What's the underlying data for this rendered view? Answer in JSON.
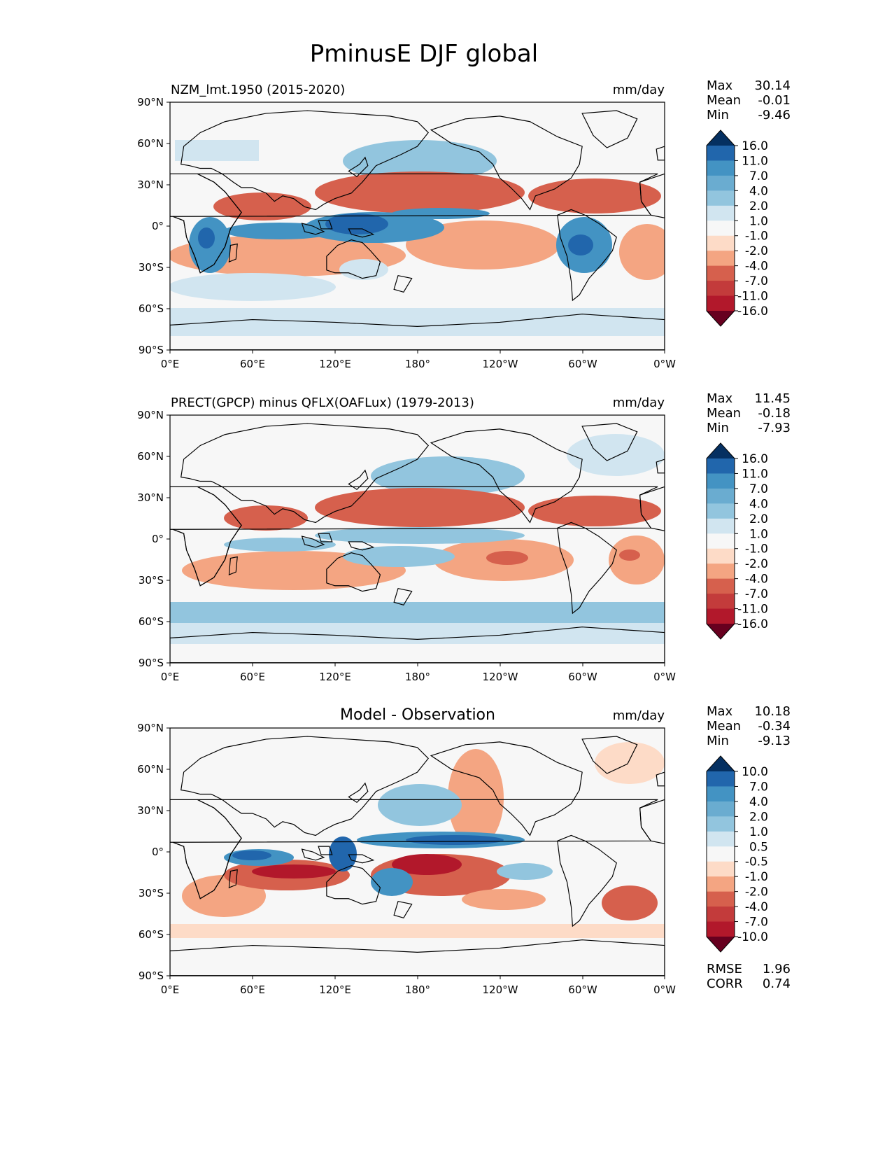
{
  "figure_title": "PminusE DJF global",
  "colors": {
    "blues": [
      "#053061",
      "#2166ac",
      "#4393c3",
      "#92c5de",
      "#d1e5f0",
      "#f7f7f7"
    ],
    "reds": [
      "#fddbc7",
      "#f4a582",
      "#d6604d",
      "#b2182b",
      "#67001f"
    ],
    "frame": "#000000",
    "land": "#ffffff"
  },
  "axes": {
    "lat_ticks": [
      "90°N",
      "60°N",
      "30°N",
      "0°",
      "30°S",
      "60°S",
      "90°S"
    ],
    "lon_ticks": [
      "0°E",
      "60°E",
      "120°E",
      "180°",
      "120°W",
      "60°W",
      "0°W"
    ]
  },
  "panels": [
    {
      "title_left": "NZM_lmt.1950 (2015-2020)",
      "title_center": "",
      "units": "mm/day",
      "stats": [
        {
          "label": "Max",
          "value": "30.14"
        },
        {
          "label": "Mean",
          "value": "-0.01"
        },
        {
          "label": "Min",
          "value": "-9.46"
        }
      ],
      "colorbar": {
        "levels": [
          "16.0",
          "11.0",
          "7.0",
          "4.0",
          "2.0",
          "1.0",
          "-1.0",
          "-2.0",
          "-4.0",
          "-7.0",
          "-11.0",
          "-16.0"
        ],
        "colors": [
          "#053061",
          "#2166ac",
          "#4393c3",
          "#6aacd0",
          "#92c5de",
          "#d1e5f0",
          "#f7f7f7",
          "#fddbc7",
          "#f4a582",
          "#d6604d",
          "#c33b3b",
          "#b2182b",
          "#67001f"
        ]
      },
      "metrics": []
    },
    {
      "title_left": "PRECT(GPCP) minus QFLX(OAFLux) (1979-2013)",
      "title_center": "",
      "units": "mm/day",
      "stats": [
        {
          "label": "Max",
          "value": "11.45"
        },
        {
          "label": "Mean",
          "value": "-0.18"
        },
        {
          "label": "Min",
          "value": "-7.93"
        }
      ],
      "colorbar": {
        "levels": [
          "16.0",
          "11.0",
          "7.0",
          "4.0",
          "2.0",
          "1.0",
          "-1.0",
          "-2.0",
          "-4.0",
          "-7.0",
          "-11.0",
          "-16.0"
        ],
        "colors": [
          "#053061",
          "#2166ac",
          "#4393c3",
          "#6aacd0",
          "#92c5de",
          "#d1e5f0",
          "#f7f7f7",
          "#fddbc7",
          "#f4a582",
          "#d6604d",
          "#c33b3b",
          "#b2182b",
          "#67001f"
        ]
      },
      "metrics": []
    },
    {
      "title_left": "",
      "title_center": "Model - Observation",
      "units": "mm/day",
      "stats": [
        {
          "label": "Max",
          "value": "10.18"
        },
        {
          "label": "Mean",
          "value": "-0.34"
        },
        {
          "label": "Min",
          "value": "-9.13"
        }
      ],
      "colorbar": {
        "levels": [
          "10.0",
          "7.0",
          "4.0",
          "2.0",
          "1.0",
          "0.5",
          "-0.5",
          "-1.0",
          "-2.0",
          "-4.0",
          "-7.0",
          "-10.0"
        ],
        "colors": [
          "#053061",
          "#2166ac",
          "#4393c3",
          "#6aacd0",
          "#92c5de",
          "#d1e5f0",
          "#f7f7f7",
          "#fddbc7",
          "#f4a582",
          "#d6604d",
          "#c33b3b",
          "#b2182b",
          "#67001f"
        ]
      },
      "metrics": [
        {
          "label": "RMSE",
          "value": "1.96"
        },
        {
          "label": "CORR",
          "value": "0.74"
        }
      ]
    }
  ],
  "chart_data": [
    {
      "type": "heatmap",
      "title": "NZM_lmt.1950 (2015-2020)",
      "units": "mm/day",
      "x_range": [
        0,
        360
      ],
      "y_range": [
        -90,
        90
      ],
      "features": [
        {
          "name": "itcz-west-pacific",
          "lon": [
            100,
            185
          ],
          "lat": [
            -15,
            10
          ],
          "value": 7.0
        },
        {
          "name": "indian-ocean-band",
          "lon": [
            45,
            105
          ],
          "lat": [
            -12,
            0
          ],
          "value": 7.0
        },
        {
          "name": "africa-south-wet",
          "lon": [
            15,
            40
          ],
          "lat": [
            -25,
            0
          ],
          "value": 7.0
        },
        {
          "name": "amazon-wet",
          "lon": [
            285,
            325
          ],
          "lat": [
            -20,
            5
          ],
          "value": 11.0
        },
        {
          "name": "maritime-continent-peak",
          "lon": [
            120,
            155
          ],
          "lat": [
            -10,
            10
          ],
          "value": 11.0
        },
        {
          "name": "north-pacific-wet",
          "lon": [
            140,
            235
          ],
          "lat": [
            35,
            55
          ],
          "value": 4.0
        },
        {
          "name": "southern-ocean-wet",
          "lon": [
            0,
            360
          ],
          "lat": [
            -60,
            -45
          ],
          "value": 2.0
        },
        {
          "name": "n-pacific-subtropical-dry",
          "lon": [
            125,
            250
          ],
          "lat": [
            12,
            30
          ],
          "value": -4.0
        },
        {
          "name": "n-atlantic-subtropical-dry",
          "lon": [
            265,
            340
          ],
          "lat": [
            10,
            30
          ],
          "value": -4.0
        },
        {
          "name": "arabian-sea-dry",
          "lon": [
            30,
            100
          ],
          "lat": [
            5,
            25
          ],
          "value": -4.0
        },
        {
          "name": "s-indian-dry",
          "lon": [
            0,
            120
          ],
          "lat": [
            -38,
            -15
          ],
          "value": -2.0
        },
        {
          "name": "se-pacific-dry",
          "lon": [
            185,
            285
          ],
          "lat": [
            -40,
            -5
          ],
          "value": -2.0
        },
        {
          "name": "s-atlantic-dry",
          "lon": [
            325,
            360
          ],
          "lat": [
            -30,
            -5
          ],
          "value": -2.0
        }
      ]
    },
    {
      "type": "heatmap",
      "title": "PRECT(GPCP) minus QFLX(OAFLux) (1979-2013)",
      "units": "mm/day",
      "x_range": [
        0,
        360
      ],
      "y_range": [
        -90,
        90
      ],
      "features": [
        {
          "name": "itcz-pacific",
          "lon": [
            100,
            250
          ],
          "lat": [
            0,
            10
          ],
          "value": 4.0
        },
        {
          "name": "spcz",
          "lon": [
            140,
            220
          ],
          "lat": [
            -15,
            -2
          ],
          "value": 4.0
        },
        {
          "name": "indian-ocean-band",
          "lon": [
            45,
            105
          ],
          "lat": [
            -12,
            0
          ],
          "value": 2.0
        },
        {
          "name": "north-pacific-wet",
          "lon": [
            140,
            235
          ],
          "lat": [
            35,
            55
          ],
          "value": 4.0
        },
        {
          "name": "southern-ocean-wet",
          "lon": [
            0,
            360
          ],
          "lat": [
            -60,
            -42
          ],
          "value": 4.0
        },
        {
          "name": "n-atlantic-wet",
          "lon": [
            295,
            355
          ],
          "lat": [
            40,
            62
          ],
          "value": 2.0
        },
        {
          "name": "n-pacific-subtropical-dry",
          "lon": [
            125,
            250
          ],
          "lat": [
            12,
            30
          ],
          "value": -4.0
        },
        {
          "name": "n-atlantic-subtropical-dry",
          "lon": [
            265,
            340
          ],
          "lat": [
            10,
            30
          ],
          "value": -4.0
        },
        {
          "name": "arabian-sea-dry",
          "lon": [
            50,
            100
          ],
          "lat": [
            5,
            25
          ],
          "value": -4.0
        },
        {
          "name": "s-indian-dry",
          "lon": [
            0,
            120
          ],
          "lat": [
            -38,
            -15
          ],
          "value": -2.0
        },
        {
          "name": "se-pacific-dry",
          "lon": [
            200,
            285
          ],
          "lat": [
            -30,
            -5
          ],
          "value": -4.0
        },
        {
          "name": "s-atlantic-dry",
          "lon": [
            325,
            360
          ],
          "lat": [
            -30,
            -5
          ],
          "value": -2.0
        }
      ]
    },
    {
      "type": "heatmap",
      "title": "Model - Observation",
      "units": "mm/day",
      "x_range": [
        0,
        360
      ],
      "y_range": [
        -90,
        90
      ],
      "rmse": 1.96,
      "corr": 0.74,
      "features": [
        {
          "name": "equatorial-pacific-wet-bias",
          "lon": [
            135,
            245
          ],
          "lat": [
            0,
            8
          ],
          "value": 4.0
        },
        {
          "name": "indian-ocean-wet-bias",
          "lon": [
            40,
            90
          ],
          "lat": [
            -8,
            0
          ],
          "value": 4.0
        },
        {
          "name": "maritime-continent-wet-bias",
          "lon": [
            115,
            135
          ],
          "lat": [
            -10,
            8
          ],
          "value": 7.0
        },
        {
          "name": "sw-pacific-wet-bias",
          "lon": [
            150,
            185
          ],
          "lat": [
            -30,
            -10
          ],
          "value": 2.0
        },
        {
          "name": "spcz-dry-bias",
          "lon": [
            150,
            250
          ],
          "lat": [
            -30,
            -5
          ],
          "value": -7.0
        },
        {
          "name": "indian-ocean-dry-bias",
          "lon": [
            40,
            120
          ],
          "lat": [
            -20,
            -5
          ],
          "value": -4.0
        },
        {
          "name": "s-atlantic-dry-bias",
          "lon": [
            320,
            360
          ],
          "lat": [
            -40,
            -20
          ],
          "value": -2.0
        },
        {
          "name": "n-pacific-dry-bias",
          "lon": [
            190,
            225
          ],
          "lat": [
            30,
            60
          ],
          "value": -2.0
        }
      ]
    }
  ]
}
